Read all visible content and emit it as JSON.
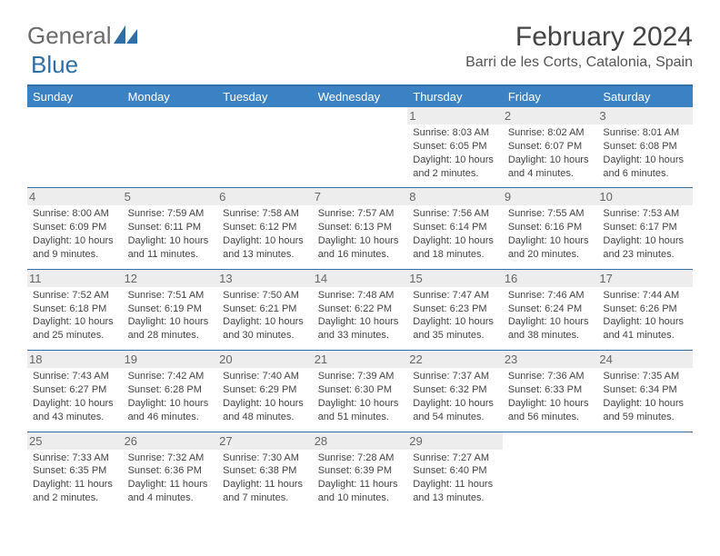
{
  "brand": {
    "part1": "General",
    "part2": "Blue"
  },
  "title": "February 2024",
  "location": "Barri de les Corts, Catalonia, Spain",
  "colors": {
    "header_bg": "#3b82c4",
    "rule": "#2f6fa8",
    "daynum_bg": "#ededed",
    "text": "#444444"
  },
  "days_of_week": [
    "Sunday",
    "Monday",
    "Tuesday",
    "Wednesday",
    "Thursday",
    "Friday",
    "Saturday"
  ],
  "weeks": [
    [
      null,
      null,
      null,
      null,
      {
        "n": "1",
        "sr": "8:03 AM",
        "ss": "6:05 PM",
        "dl": "10 hours and 2 minutes."
      },
      {
        "n": "2",
        "sr": "8:02 AM",
        "ss": "6:07 PM",
        "dl": "10 hours and 4 minutes."
      },
      {
        "n": "3",
        "sr": "8:01 AM",
        "ss": "6:08 PM",
        "dl": "10 hours and 6 minutes."
      }
    ],
    [
      {
        "n": "4",
        "sr": "8:00 AM",
        "ss": "6:09 PM",
        "dl": "10 hours and 9 minutes."
      },
      {
        "n": "5",
        "sr": "7:59 AM",
        "ss": "6:11 PM",
        "dl": "10 hours and 11 minutes."
      },
      {
        "n": "6",
        "sr": "7:58 AM",
        "ss": "6:12 PM",
        "dl": "10 hours and 13 minutes."
      },
      {
        "n": "7",
        "sr": "7:57 AM",
        "ss": "6:13 PM",
        "dl": "10 hours and 16 minutes."
      },
      {
        "n": "8",
        "sr": "7:56 AM",
        "ss": "6:14 PM",
        "dl": "10 hours and 18 minutes."
      },
      {
        "n": "9",
        "sr": "7:55 AM",
        "ss": "6:16 PM",
        "dl": "10 hours and 20 minutes."
      },
      {
        "n": "10",
        "sr": "7:53 AM",
        "ss": "6:17 PM",
        "dl": "10 hours and 23 minutes."
      }
    ],
    [
      {
        "n": "11",
        "sr": "7:52 AM",
        "ss": "6:18 PM",
        "dl": "10 hours and 25 minutes."
      },
      {
        "n": "12",
        "sr": "7:51 AM",
        "ss": "6:19 PM",
        "dl": "10 hours and 28 minutes."
      },
      {
        "n": "13",
        "sr": "7:50 AM",
        "ss": "6:21 PM",
        "dl": "10 hours and 30 minutes."
      },
      {
        "n": "14",
        "sr": "7:48 AM",
        "ss": "6:22 PM",
        "dl": "10 hours and 33 minutes."
      },
      {
        "n": "15",
        "sr": "7:47 AM",
        "ss": "6:23 PM",
        "dl": "10 hours and 35 minutes."
      },
      {
        "n": "16",
        "sr": "7:46 AM",
        "ss": "6:24 PM",
        "dl": "10 hours and 38 minutes."
      },
      {
        "n": "17",
        "sr": "7:44 AM",
        "ss": "6:26 PM",
        "dl": "10 hours and 41 minutes."
      }
    ],
    [
      {
        "n": "18",
        "sr": "7:43 AM",
        "ss": "6:27 PM",
        "dl": "10 hours and 43 minutes."
      },
      {
        "n": "19",
        "sr": "7:42 AM",
        "ss": "6:28 PM",
        "dl": "10 hours and 46 minutes."
      },
      {
        "n": "20",
        "sr": "7:40 AM",
        "ss": "6:29 PM",
        "dl": "10 hours and 48 minutes."
      },
      {
        "n": "21",
        "sr": "7:39 AM",
        "ss": "6:30 PM",
        "dl": "10 hours and 51 minutes."
      },
      {
        "n": "22",
        "sr": "7:37 AM",
        "ss": "6:32 PM",
        "dl": "10 hours and 54 minutes."
      },
      {
        "n": "23",
        "sr": "7:36 AM",
        "ss": "6:33 PM",
        "dl": "10 hours and 56 minutes."
      },
      {
        "n": "24",
        "sr": "7:35 AM",
        "ss": "6:34 PM",
        "dl": "10 hours and 59 minutes."
      }
    ],
    [
      {
        "n": "25",
        "sr": "7:33 AM",
        "ss": "6:35 PM",
        "dl": "11 hours and 2 minutes."
      },
      {
        "n": "26",
        "sr": "7:32 AM",
        "ss": "6:36 PM",
        "dl": "11 hours and 4 minutes."
      },
      {
        "n": "27",
        "sr": "7:30 AM",
        "ss": "6:38 PM",
        "dl": "11 hours and 7 minutes."
      },
      {
        "n": "28",
        "sr": "7:28 AM",
        "ss": "6:39 PM",
        "dl": "11 hours and 10 minutes."
      },
      {
        "n": "29",
        "sr": "7:27 AM",
        "ss": "6:40 PM",
        "dl": "11 hours and 13 minutes."
      },
      null,
      null
    ]
  ],
  "labels": {
    "sunrise": "Sunrise:",
    "sunset": "Sunset:",
    "daylight": "Daylight:"
  }
}
